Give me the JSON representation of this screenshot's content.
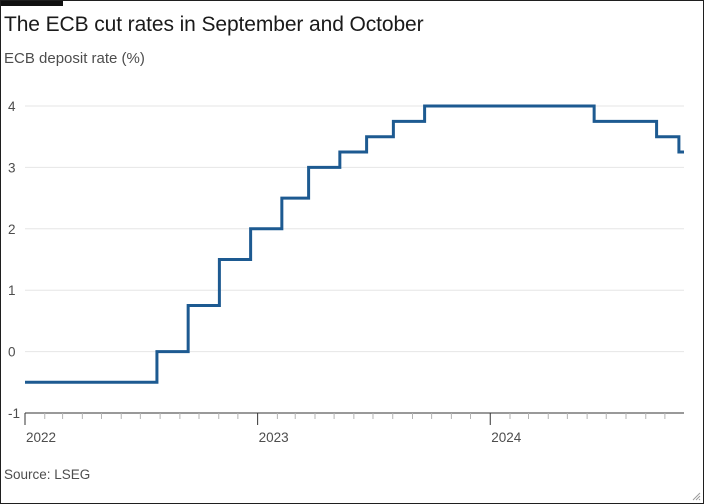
{
  "header": {
    "title": "The ECB cut rates in September and October",
    "subtitle": "ECB deposit rate (%)"
  },
  "footer": {
    "source": "Source: LSEG"
  },
  "colors": {
    "line": "#1d5a91",
    "grid": "#e6e6e6",
    "axis": "#333333",
    "text": "#4d4d4d"
  },
  "chart_data": {
    "type": "line",
    "title": "The ECB cut rates in September and October",
    "ylabel": "ECB deposit rate (%)",
    "xlabel": "",
    "x_axis": "date",
    "xlim": [
      "2022-01-01",
      "2024-10-31"
    ],
    "ylim": [
      -1,
      4
    ],
    "yticks": [
      -1,
      0,
      1,
      2,
      3,
      4
    ],
    "xticks": [
      {
        "label": "2022",
        "date": "2022-01-01"
      },
      {
        "label": "2023",
        "date": "2023-01-01"
      },
      {
        "label": "2024",
        "date": "2024-01-01"
      }
    ],
    "grid": true,
    "line_shape": "step",
    "series": [
      {
        "name": "",
        "points": [
          {
            "x": "2022-01-01",
            "y": -0.5
          },
          {
            "x": "2022-07-27",
            "y": 0.0
          },
          {
            "x": "2022-09-14",
            "y": 0.75
          },
          {
            "x": "2022-11-02",
            "y": 1.5
          },
          {
            "x": "2022-12-21",
            "y": 2.0
          },
          {
            "x": "2023-02-08",
            "y": 2.5
          },
          {
            "x": "2023-03-22",
            "y": 3.0
          },
          {
            "x": "2023-05-10",
            "y": 3.25
          },
          {
            "x": "2023-06-21",
            "y": 3.5
          },
          {
            "x": "2023-08-02",
            "y": 3.75
          },
          {
            "x": "2023-09-20",
            "y": 4.0
          },
          {
            "x": "2024-06-12",
            "y": 3.75
          },
          {
            "x": "2024-09-18",
            "y": 3.5
          },
          {
            "x": "2024-10-23",
            "y": 3.25
          },
          {
            "x": "2024-10-31",
            "y": 3.25
          }
        ]
      }
    ]
  }
}
